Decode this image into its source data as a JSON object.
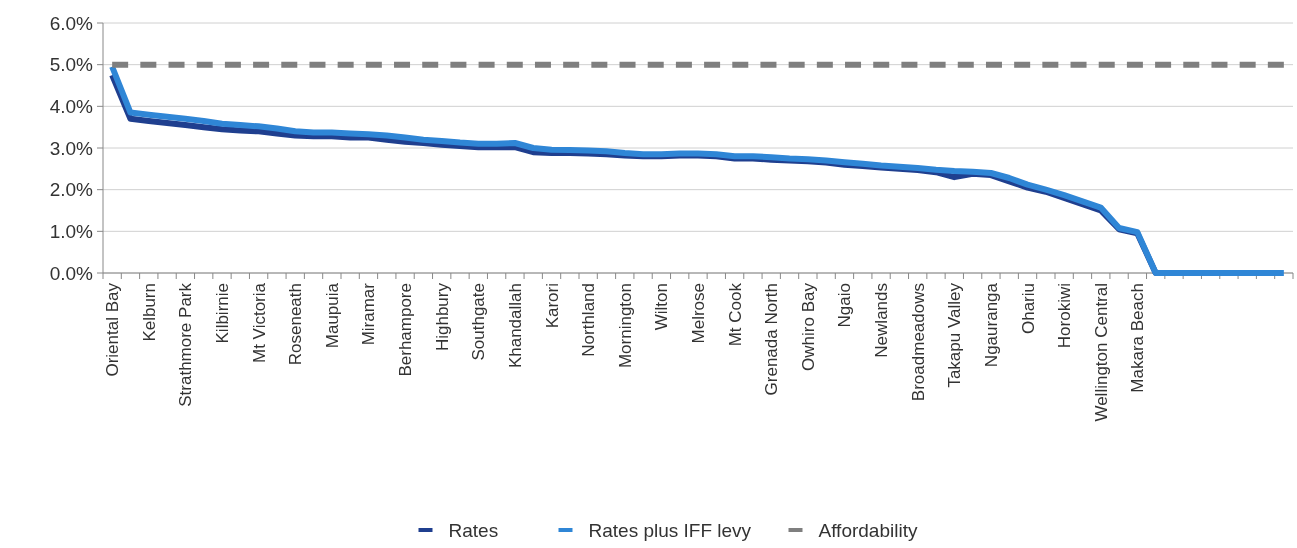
{
  "chart_data": {
    "type": "line",
    "categories": [
      "Oriental Bay",
      null,
      "Kelburn",
      null,
      "Strathmore Park",
      null,
      "Kilbirnie",
      null,
      "Mt Victoria",
      null,
      "Roseneath",
      null,
      "Maupuia",
      null,
      "Miramar",
      null,
      "Berhampore",
      null,
      "Highbury",
      null,
      "Southgate",
      null,
      "Khandallah",
      null,
      "Karori",
      null,
      "Northland",
      null,
      "Mornington",
      null,
      "Wilton",
      null,
      "Melrose",
      null,
      "Mt Cook",
      null,
      "Grenada North",
      null,
      "Owhiro Bay",
      null,
      "Ngaio",
      null,
      "Newlands",
      null,
      "Broadmeadows",
      null,
      "Takapu Valley",
      null,
      "Ngauranga",
      null,
      "Ohariu",
      null,
      "Horokiwi",
      null,
      "Wellington Central",
      null,
      "Makara Beach",
      null,
      null,
      null,
      null,
      null,
      null,
      null,
      null
    ],
    "series": [
      {
        "name": "Rates",
        "color": "#1f3f8f",
        "values": [
          4.75,
          3.7,
          3.65,
          3.6,
          3.55,
          3.5,
          3.45,
          3.42,
          3.4,
          3.35,
          3.3,
          3.28,
          3.28,
          3.25,
          3.25,
          3.2,
          3.15,
          3.12,
          3.08,
          3.05,
          3.02,
          3.02,
          3.02,
          2.9,
          2.88,
          2.88,
          2.87,
          2.85,
          2.82,
          2.8,
          2.8,
          2.82,
          2.82,
          2.8,
          2.75,
          2.75,
          2.72,
          2.7,
          2.68,
          2.65,
          2.6,
          2.57,
          2.53,
          2.5,
          2.47,
          2.42,
          2.3,
          2.38,
          2.35,
          2.2,
          2.05,
          1.95,
          1.8,
          1.65,
          1.5,
          1.05,
          0.95,
          0,
          0,
          null,
          null,
          null,
          null,
          null,
          null
        ]
      },
      {
        "name": "Rates plus IFF levy",
        "color": "#2f86d6",
        "values": [
          4.95,
          3.85,
          3.8,
          3.75,
          3.7,
          3.65,
          3.58,
          3.55,
          3.52,
          3.47,
          3.4,
          3.37,
          3.37,
          3.35,
          3.33,
          3.3,
          3.25,
          3.2,
          3.17,
          3.13,
          3.1,
          3.1,
          3.12,
          3.0,
          2.96,
          2.95,
          2.94,
          2.92,
          2.88,
          2.85,
          2.85,
          2.87,
          2.87,
          2.85,
          2.8,
          2.8,
          2.78,
          2.75,
          2.73,
          2.7,
          2.66,
          2.62,
          2.58,
          2.55,
          2.52,
          2.48,
          2.45,
          2.43,
          2.4,
          2.28,
          2.12,
          2.0,
          1.87,
          1.72,
          1.57,
          1.08,
          0.98,
          0,
          0,
          0,
          0,
          0,
          0,
          0,
          0
        ]
      },
      {
        "name": "Affordability",
        "color": "#7f7f7f",
        "line_style": "dashed",
        "values": [
          5,
          5,
          5,
          5,
          5,
          5,
          5,
          5,
          5,
          5,
          5,
          5,
          5,
          5,
          5,
          5,
          5,
          5,
          5,
          5,
          5,
          5,
          5,
          5,
          5,
          5,
          5,
          5,
          5,
          5,
          5,
          5,
          5,
          5,
          5,
          5,
          5,
          5,
          5,
          5,
          5,
          5,
          5,
          5,
          5,
          5,
          5,
          5,
          5,
          5,
          5,
          5,
          5,
          5,
          5,
          5,
          5,
          5,
          5,
          5,
          5,
          5,
          5,
          5,
          5
        ]
      }
    ],
    "ylim": [
      0,
      6
    ],
    "yticks": [
      {
        "value": 0,
        "label": "0.0%"
      },
      {
        "value": 1,
        "label": "1.0%"
      },
      {
        "value": 2,
        "label": "2.0%"
      },
      {
        "value": 3,
        "label": "3.0%"
      },
      {
        "value": 4,
        "label": "4.0%"
      },
      {
        "value": 5,
        "label": "5.0%"
      },
      {
        "value": 6,
        "label": "6.0%"
      }
    ],
    "grid": "y",
    "legend": "bottom",
    "marker": "none",
    "line_style": "solid"
  }
}
